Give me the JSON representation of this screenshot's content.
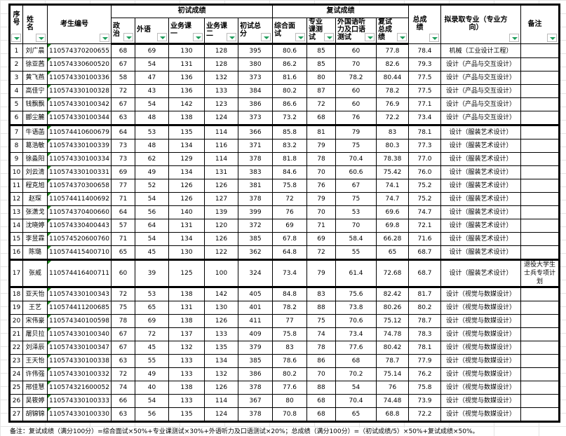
{
  "headers": {
    "no": "序号",
    "name": "姓名",
    "id": "考生编号",
    "prelim": "初试成绩",
    "politics": "政治",
    "foreign": "外语",
    "course1": "业务课一",
    "course2": "业务课二",
    "prelim_total": "初试总分",
    "retest": "复试成绩",
    "interview": "综合面试",
    "major_test": "专业课测试",
    "oral_test": "外国语听力及口语测试",
    "retest_total": "复试总成绩",
    "total": "总成绩",
    "major": "拟录取专业（专业方向）",
    "remark": "备注"
  },
  "rows": [
    [
      "1",
      "刘广晨",
      "110574370200655",
      "68",
      "69",
      "130",
      "128",
      "395",
      "80.6",
      "85",
      "60",
      "77.8",
      "78.4",
      "机械（工业设计工程）",
      ""
    ],
    [
      "2",
      "徐亚茜",
      "110574330600520",
      "67",
      "54",
      "131",
      "128",
      "380",
      "86.2",
      "85",
      "70",
      "82.6",
      "79.3",
      "设计（产品与交互设计）",
      ""
    ],
    [
      "3",
      "黄飞燕",
      "110574330100336",
      "58",
      "47",
      "136",
      "132",
      "373",
      "81.6",
      "80",
      "78.2",
      "80.44",
      "77.5",
      "设计（产品与交互设计）",
      ""
    ],
    [
      "4",
      "高佳宁",
      "110574330100328",
      "72",
      "43",
      "136",
      "133",
      "384",
      "80.2",
      "87",
      "60",
      "78.2",
      "77.5",
      "设计（产品与交互设计）",
      ""
    ],
    [
      "5",
      "钱飘飘",
      "110574330100342",
      "67",
      "54",
      "142",
      "123",
      "386",
      "86.6",
      "72",
      "60",
      "76.9",
      "77.1",
      "设计（产品与交互设计）",
      ""
    ],
    [
      "6",
      "郦尘麓",
      "110574330100344",
      "63",
      "48",
      "138",
      "124",
      "373",
      "73.2",
      "68",
      "76",
      "72.2",
      "73.4",
      "设计（产品与交互设计）",
      ""
    ],
    [
      "7",
      "牛语菡",
      "110574410600679",
      "64",
      "53",
      "135",
      "114",
      "366",
      "85.8",
      "81",
      "79",
      "83",
      "78.1",
      "设计（服装艺术设计）",
      ""
    ],
    [
      "8",
      "葛浩敏",
      "110574330100339",
      "73",
      "48",
      "134",
      "116",
      "371",
      "83.2",
      "79",
      "75",
      "80.3",
      "77.3",
      "设计（服装艺术设计）",
      ""
    ],
    [
      "9",
      "徐淼阳",
      "110574330100334",
      "73",
      "62",
      "129",
      "114",
      "378",
      "81.8",
      "78",
      "70.4",
      "78.38",
      "77.0",
      "设计（服装艺术设计）",
      ""
    ],
    [
      "10",
      "刘云清",
      "110574330100331",
      "69",
      "49",
      "134",
      "131",
      "383",
      "84.6",
      "70",
      "60.6",
      "75.42",
      "76.0",
      "设计（服装艺术设计）",
      ""
    ],
    [
      "11",
      "程克旭",
      "110574370300658",
      "77",
      "52",
      "126",
      "126",
      "381",
      "75.8",
      "76",
      "67",
      "74.1",
      "75.2",
      "设计（服装艺术设计）",
      ""
    ],
    [
      "12",
      "赵琛",
      "110574411400692",
      "71",
      "54",
      "126",
      "127",
      "378",
      "72",
      "79",
      "75",
      "74.7",
      "75.2",
      "设计（服装艺术设计）",
      ""
    ],
    [
      "13",
      "张潇戈",
      "110574370400660",
      "64",
      "56",
      "140",
      "139",
      "399",
      "76",
      "70",
      "53",
      "69.6",
      "74.7",
      "设计（服装艺术设计）",
      ""
    ],
    [
      "14",
      "沈晓婷",
      "110574330400443",
      "57",
      "64",
      "131",
      "120",
      "372",
      "69",
      "71",
      "70",
      "69.8",
      "72.1",
      "设计（服装艺术设计）",
      ""
    ],
    [
      "15",
      "李昱霖",
      "110574520600760",
      "71",
      "54",
      "134",
      "126",
      "385",
      "67.8",
      "69",
      "58.4",
      "66.28",
      "71.6",
      "设计（服装艺术设计）",
      ""
    ],
    [
      "16",
      "陈璐",
      "110574415400710",
      "65",
      "45",
      "130",
      "122",
      "362",
      "64.8",
      "72",
      "55",
      "65",
      "68.7",
      "设计（服装艺术设计）",
      ""
    ],
    [
      "17",
      "张威",
      "110574416400711",
      "60",
      "39",
      "125",
      "100",
      "324",
      "73.4",
      "79",
      "61.4",
      "72.68",
      "68.7",
      "设计（服装艺术设计）",
      "退役大学生士兵专项计划"
    ],
    [
      "18",
      "亚天怡",
      "110574330100343",
      "72",
      "53",
      "138",
      "142",
      "405",
      "84.8",
      "83",
      "75.6",
      "82.42",
      "81.7",
      "设计（视觉与数媒设计）",
      ""
    ],
    [
      "19",
      "王艺",
      "110574411200685",
      "75",
      "65",
      "131",
      "130",
      "401",
      "78.2",
      "88",
      "73.8",
      "80.26",
      "80.2",
      "设计（视觉与数媒设计）",
      ""
    ],
    [
      "20",
      "宋伟豪",
      "110574340100598",
      "78",
      "69",
      "138",
      "126",
      "411",
      "77",
      "75",
      "70.6",
      "75.12",
      "78.7",
      "设计（视觉与数媒设计）",
      ""
    ],
    [
      "21",
      "屠贝拉",
      "110574330100340",
      "67",
      "72",
      "137",
      "133",
      "409",
      "75.8",
      "74",
      "73.4",
      "74.78",
      "78.3",
      "设计（视觉与数媒设计）",
      ""
    ],
    [
      "22",
      "刘泽辰",
      "110574330100347",
      "67",
      "45",
      "132",
      "135",
      "379",
      "83",
      "78",
      "77.6",
      "80.42",
      "78.1",
      "设计（视觉与数媒设计）",
      ""
    ],
    [
      "23",
      "王天怡",
      "110574330100338",
      "63",
      "55",
      "133",
      "134",
      "385",
      "78.6",
      "86",
      "68",
      "78.7",
      "77.9",
      "设计（视觉与数媒设计）",
      ""
    ],
    [
      "24",
      "许伟强",
      "110574330100332",
      "72",
      "49",
      "133",
      "132",
      "386",
      "80.2",
      "70",
      "70.2",
      "75.14",
      "76.2",
      "设计（视觉与数媒设计）",
      ""
    ],
    [
      "25",
      "邢佳慧",
      "110574321600052",
      "74",
      "40",
      "138",
      "126",
      "378",
      "77.6",
      "88",
      "54",
      "76",
      "75.8",
      "设计（视觉与数媒设计）",
      ""
    ],
    [
      "26",
      "吴筱婷",
      "110574330100333",
      "66",
      "54",
      "133",
      "114",
      "367",
      "80",
      "68",
      "70.4",
      "74.48",
      "73.9",
      "设计（视觉与数媒设计）",
      ""
    ],
    [
      "27",
      "胡锦锦",
      "110574330100330",
      "63",
      "56",
      "135",
      "124",
      "378",
      "70.8",
      "68",
      "65",
      "68.8",
      "72.2",
      "设计（视觉与数媒设计）",
      ""
    ]
  ],
  "footer": "备注：复试成绩（满分100分）=综合面试×50%+专业课测试×30%+外语听力及口语测试×20%；总成绩（满分100分）=（初试成绩/5）×50%+复试成绩×50%。",
  "colors": {
    "filter_arrow": "#1e9d5b",
    "comment_marker": "#1a8a1a"
  }
}
